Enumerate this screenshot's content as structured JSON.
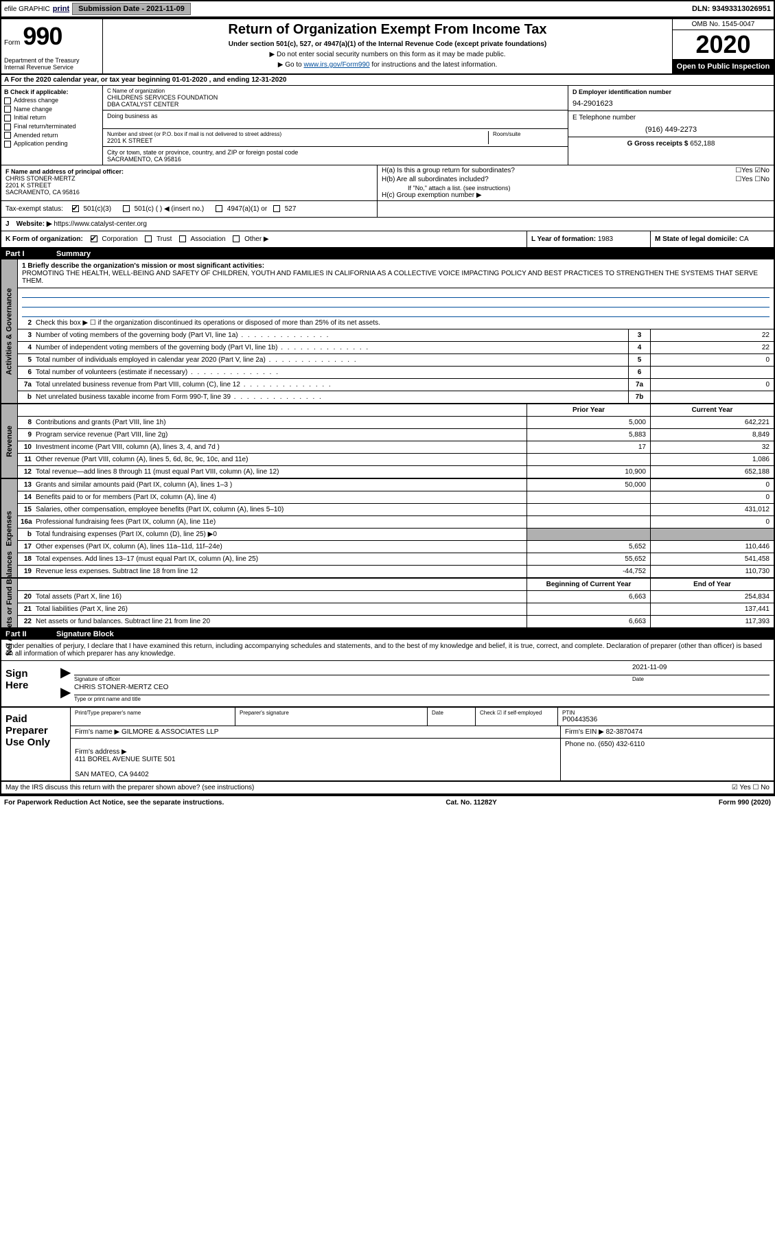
{
  "topbar": {
    "efile": "efile GRAPHIC",
    "print": "print",
    "submission_label": "Submission Date - ",
    "submission_date": "2021-11-09",
    "dln_label": "DLN: ",
    "dln": "93493313026951"
  },
  "head": {
    "form_word": "Form",
    "form_num": "990",
    "dept": "Department of the Treasury\nInternal Revenue Service",
    "title": "Return of Organization Exempt From Income Tax",
    "subtitle": "Under section 501(c), 527, or 4947(a)(1) of the Internal Revenue Code (except private foundations)",
    "line1": "▶ Do not enter social security numbers on this form as it may be made public.",
    "line2_pre": "▶ Go to ",
    "line2_link": "www.irs.gov/Form990",
    "line2_post": " for instructions and the latest information.",
    "omb": "OMB No. 1545-0047",
    "year": "2020",
    "open_public": "Open to Public Inspection"
  },
  "tax_year": "A For the 2020 calendar year, or tax year beginning 01-01-2020   , and ending 12-31-2020",
  "colB": {
    "header": "B Check if applicable:",
    "items": [
      "Address change",
      "Name change",
      "Initial return",
      "Final return/terminated",
      "Amended return",
      "Application pending"
    ]
  },
  "colC": {
    "name_label": "C Name of organization",
    "name": "CHILDRENS SERVICES FOUNDATION\nDBA CATALYST CENTER",
    "dba_label": "Doing business as",
    "addr_label": "Number and street (or P.O. box if mail is not delivered to street address)",
    "room_label": "Room/suite",
    "addr": "2201 K STREET",
    "city_label": "City or town, state or province, country, and ZIP or foreign postal code",
    "city": "SACRAMENTO, CA  95816"
  },
  "colD": {
    "ein_label": "D Employer identification number",
    "ein": "94-2901623",
    "phone_label": "E Telephone number",
    "phone": "(916) 449-2273",
    "gross_label": "G Gross receipts $ ",
    "gross": "652,188"
  },
  "F": {
    "label": "F  Name and address of principal officer:",
    "name": "CHRIS STONER-MERTZ",
    "addr": "2201 K STREET\nSACRAMENTO, CA  95816"
  },
  "H": {
    "a_label": "H(a)  Is this a group return for subordinates?",
    "b_label": "H(b)  Are all subordinates included?",
    "ifno": "If \"No,\" attach a list. (see instructions)",
    "c_label": "H(c)  Group exemption number ▶"
  },
  "I": {
    "label": "Tax-exempt status:",
    "opts": [
      "501(c)(3)",
      "501(c) (  ) ◀ (insert no.)",
      "4947(a)(1) or",
      "527"
    ]
  },
  "J": {
    "label": "J",
    "website_label": "Website: ▶",
    "website": "https://www.catalyst-center.org"
  },
  "K": {
    "label": "K Form of organization:",
    "opts": [
      "Corporation",
      "Trust",
      "Association",
      "Other ▶"
    ]
  },
  "L": {
    "label": "L Year of formation: ",
    "val": "1983"
  },
  "M": {
    "label": "M State of legal domicile: ",
    "val": "CA"
  },
  "partI": {
    "num": "Part I",
    "title": "Summary",
    "mission_label": "1  Briefly describe the organization's mission or most significant activities:",
    "mission": "PROMOTING THE HEALTH, WELL-BEING AND SAFETY OF CHILDREN, YOUTH AND FAMILIES IN CALIFORNIA AS A COLLECTIVE VOICE IMPACTING POLICY AND BEST PRACTICES TO STRENGTHEN THE SYSTEMS THAT SERVE THEM.",
    "line2": "Check this box ▶ ☐  if the organization discontinued its operations or disposed of more than 25% of its net assets.",
    "rows_gov": [
      {
        "n": "3",
        "label": "Number of voting members of the governing body (Part VI, line 1a)",
        "c": "3",
        "v": "22"
      },
      {
        "n": "4",
        "label": "Number of independent voting members of the governing body (Part VI, line 1b)",
        "c": "4",
        "v": "22"
      },
      {
        "n": "5",
        "label": "Total number of individuals employed in calendar year 2020 (Part V, line 2a)",
        "c": "5",
        "v": "0"
      },
      {
        "n": "6",
        "label": "Total number of volunteers (estimate if necessary)",
        "c": "6",
        "v": ""
      },
      {
        "n": "7a",
        "label": "Total unrelated business revenue from Part VIII, column (C), line 12",
        "c": "7a",
        "v": "0"
      },
      {
        "n": "b",
        "label": "Net unrelated business taxable income from Form 990-T, line 39",
        "c": "7b",
        "v": ""
      }
    ],
    "prior_header": "Prior Year",
    "curr_header": "Current Year",
    "rows_rev": [
      {
        "n": "8",
        "label": "Contributions and grants (Part VIII, line 1h)",
        "p": "5,000",
        "c": "642,221"
      },
      {
        "n": "9",
        "label": "Program service revenue (Part VIII, line 2g)",
        "p": "5,883",
        "c": "8,849"
      },
      {
        "n": "10",
        "label": "Investment income (Part VIII, column (A), lines 3, 4, and 7d )",
        "p": "17",
        "c": "32"
      },
      {
        "n": "11",
        "label": "Other revenue (Part VIII, column (A), lines 5, 6d, 8c, 9c, 10c, and 11e)",
        "p": "",
        "c": "1,086"
      },
      {
        "n": "12",
        "label": "Total revenue—add lines 8 through 11 (must equal Part VIII, column (A), line 12)",
        "p": "10,900",
        "c": "652,188"
      }
    ],
    "rows_exp": [
      {
        "n": "13",
        "label": "Grants and similar amounts paid (Part IX, column (A), lines 1–3 )",
        "p": "50,000",
        "c": "0"
      },
      {
        "n": "14",
        "label": "Benefits paid to or for members (Part IX, column (A), line 4)",
        "p": "",
        "c": "0"
      },
      {
        "n": "15",
        "label": "Salaries, other compensation, employee benefits (Part IX, column (A), lines 5–10)",
        "p": "",
        "c": "431,012"
      },
      {
        "n": "16a",
        "label": "Professional fundraising fees (Part IX, column (A), line 11e)",
        "p": "",
        "c": "0"
      },
      {
        "n": "b",
        "label": "Total fundraising expenses (Part IX, column (D), line 25) ▶0",
        "p": "grey",
        "c": "grey"
      },
      {
        "n": "17",
        "label": "Other expenses (Part IX, column (A), lines 11a–11d, 11f–24e)",
        "p": "5,652",
        "c": "110,446"
      },
      {
        "n": "18",
        "label": "Total expenses. Add lines 13–17 (must equal Part IX, column (A), line 25)",
        "p": "55,652",
        "c": "541,458"
      },
      {
        "n": "19",
        "label": "Revenue less expenses. Subtract line 18 from line 12",
        "p": "-44,752",
        "c": "110,730"
      }
    ],
    "begin_header": "Beginning of Current Year",
    "end_header": "End of Year",
    "rows_net": [
      {
        "n": "20",
        "label": "Total assets (Part X, line 16)",
        "p": "6,663",
        "c": "254,834"
      },
      {
        "n": "21",
        "label": "Total liabilities (Part X, line 26)",
        "p": "",
        "c": "137,441"
      },
      {
        "n": "22",
        "label": "Net assets or fund balances. Subtract line 21 from line 20",
        "p": "6,663",
        "c": "117,393"
      }
    ],
    "tab_gov": "Activities & Governance",
    "tab_rev": "Revenue",
    "tab_exp": "Expenses",
    "tab_net": "Net Assets or Fund Balances"
  },
  "partII": {
    "num": "Part II",
    "title": "Signature Block",
    "declare": "Under penalties of perjury, I declare that I have examined this return, including accompanying schedules and statements, and to the best of my knowledge and belief, it is true, correct, and complete. Declaration of preparer (other than officer) is based on all information of which preparer has any knowledge.",
    "sign_here": "Sign Here",
    "sig_officer_lbl": "Signature of officer",
    "date_lbl": "Date",
    "sig_date": "2021-11-09",
    "name_title": "CHRIS STONER-MERTZ  CEO",
    "name_title_lbl": "Type or print name and title"
  },
  "paid": {
    "heading": "Paid Preparer Use Only",
    "col_print": "Print/Type preparer's name",
    "col_sig": "Preparer's signature",
    "col_date": "Date",
    "col_check": "Check ☑ if self-employed",
    "col_ptin_lbl": "PTIN",
    "col_ptin": "P00443536",
    "firm_lbl": "Firm's name      ▶",
    "firm": "GILMORE & ASSOCIATES LLP",
    "ein_lbl": "Firm's EIN ▶ ",
    "ein": "82-3870474",
    "addr_lbl": "Firm's address ▶",
    "addr": "411 BOREL AVENUE SUITE 501\n\nSAN MATEO, CA  94402",
    "phone_lbl": "Phone no. ",
    "phone": "(650) 432-6110"
  },
  "irs_discuss": "May the IRS discuss this return with the preparer shown above? (see instructions)",
  "irs_discuss_yn": "☑ Yes   ☐ No",
  "footer": {
    "left": "For Paperwork Reduction Act Notice, see the separate instructions.",
    "mid": "Cat. No. 11282Y",
    "right": "Form 990 (2020)"
  }
}
